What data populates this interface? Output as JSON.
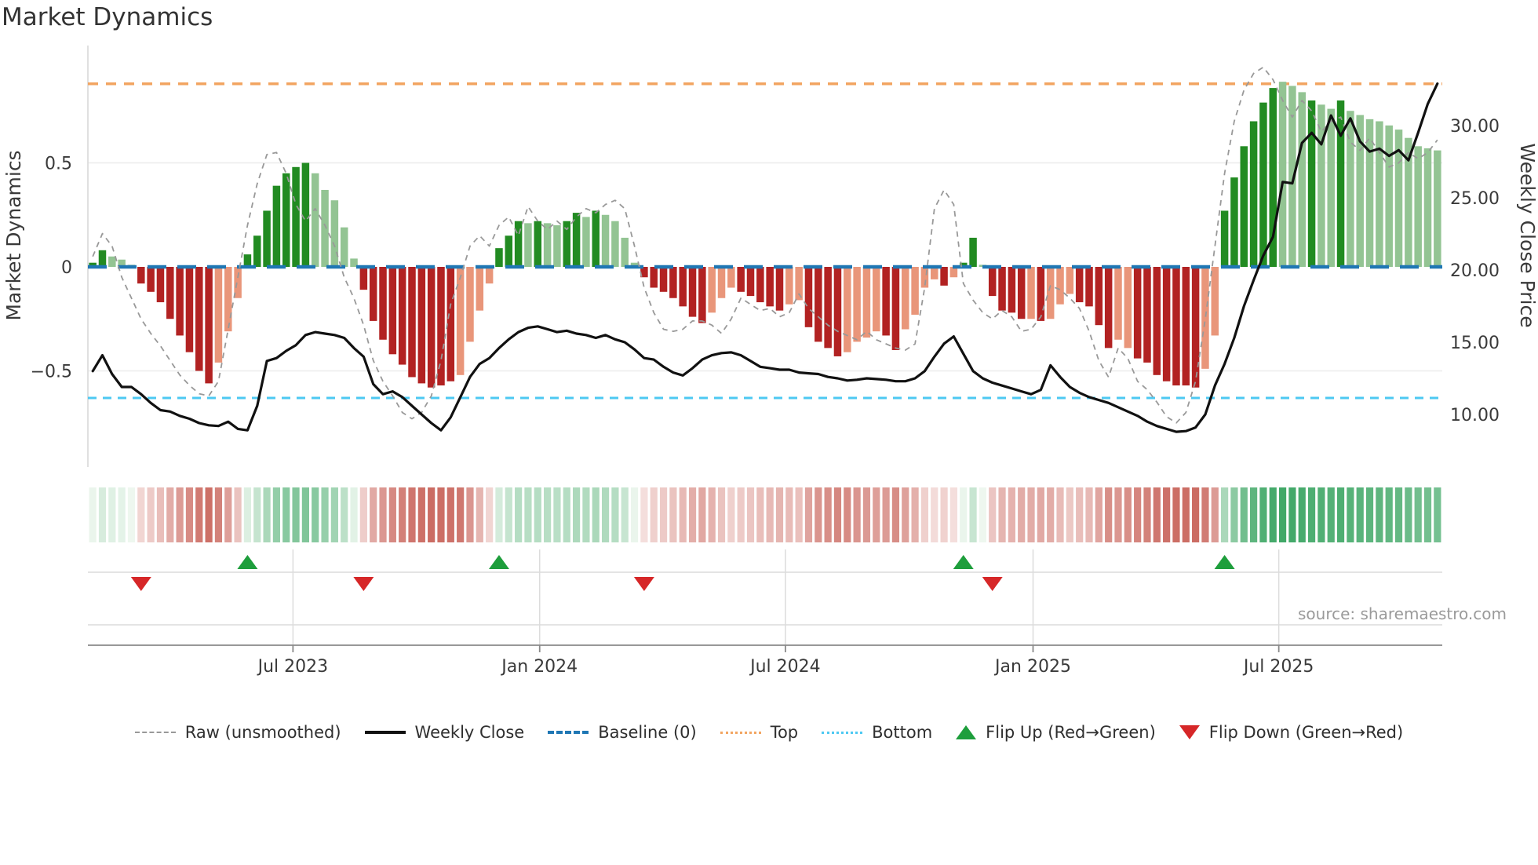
{
  "title": "Market Dynamics",
  "source": "source: sharemaestro.com",
  "axes": {
    "left_label": "Market Dynamics",
    "right_label": "Weekly Close Price",
    "left_ticks": [
      {
        "label": "0.5",
        "value": 0.5
      },
      {
        "label": "0",
        "value": 0.0
      },
      {
        "label": "−0.5",
        "value": -0.5
      }
    ],
    "right_ticks": [
      {
        "label": "30.00",
        "value": 30
      },
      {
        "label": "25.00",
        "value": 25
      },
      {
        "label": "20.00",
        "value": 20
      },
      {
        "label": "15.00",
        "value": 15
      },
      {
        "label": "10.00",
        "value": 10
      }
    ],
    "x_ticks": [
      {
        "label": "Jul 2023",
        "week": 20.7
      },
      {
        "label": "Jan 2024",
        "week": 46.2
      },
      {
        "label": "Jul 2024",
        "week": 71.6
      },
      {
        "label": "Jan 2025",
        "week": 97.2
      },
      {
        "label": "Jul 2025",
        "week": 122.6
      }
    ]
  },
  "legend": {
    "items": [
      {
        "label": "Raw (unsmoothed)",
        "swatch": "raw"
      },
      {
        "label": "Weekly Close",
        "swatch": "weekly"
      },
      {
        "label": "Baseline (0)",
        "swatch": "baseline"
      },
      {
        "label": "Top",
        "swatch": "top"
      },
      {
        "label": "Bottom",
        "swatch": "bottom"
      },
      {
        "label": "Flip Up (Red→Green)",
        "swatch": "tri up"
      },
      {
        "label": "Flip Down (Green→Red)",
        "swatch": "tri down"
      }
    ]
  },
  "chart_data": {
    "type": "bar+line",
    "frequency": "weekly",
    "start_date": "2023-02-06",
    "n_points": 140,
    "baseline": 0,
    "top_line": 0.88,
    "bottom_line": -0.63,
    "left_axis_range": [
      -0.9,
      1.06
    ],
    "right_axis_range": [
      6.5,
      35.5
    ],
    "oscillator_values": [
      0.02,
      0.08,
      0.05,
      0.035,
      0.01,
      -0.08,
      -0.12,
      -0.17,
      -0.25,
      -0.33,
      -0.41,
      -0.5,
      -0.56,
      -0.46,
      -0.31,
      -0.15,
      0.06,
      0.15,
      0.27,
      0.39,
      0.45,
      0.48,
      0.5,
      0.45,
      0.37,
      0.32,
      0.19,
      0.04,
      -0.11,
      -0.26,
      -0.35,
      -0.42,
      -0.47,
      -0.53,
      -0.56,
      -0.58,
      -0.57,
      -0.55,
      -0.52,
      -0.36,
      -0.21,
      -0.08,
      0.09,
      0.15,
      0.22,
      0.21,
      0.22,
      0.21,
      0.2,
      0.22,
      0.26,
      0.24,
      0.27,
      0.25,
      0.22,
      0.14,
      0.02,
      -0.05,
      -0.1,
      -0.12,
      -0.15,
      -0.19,
      -0.24,
      -0.27,
      -0.22,
      -0.15,
      -0.1,
      -0.12,
      -0.14,
      -0.17,
      -0.19,
      -0.21,
      -0.18,
      -0.16,
      -0.29,
      -0.36,
      -0.39,
      -0.43,
      -0.41,
      -0.36,
      -0.34,
      -0.31,
      -0.33,
      -0.4,
      -0.3,
      -0.23,
      -0.1,
      -0.06,
      -0.09,
      -0.05,
      0.02,
      0.14,
      0.01,
      -0.14,
      -0.21,
      -0.22,
      -0.25,
      -0.25,
      -0.26,
      -0.25,
      -0.18,
      -0.13,
      -0.17,
      -0.19,
      -0.28,
      -0.39,
      -0.35,
      -0.39,
      -0.44,
      -0.46,
      -0.52,
      -0.55,
      -0.57,
      -0.57,
      -0.58,
      -0.49,
      -0.33,
      0.27,
      0.43,
      0.58,
      0.7,
      0.79,
      0.86,
      0.89,
      0.87,
      0.84,
      0.8,
      0.78,
      0.76,
      0.8,
      0.75,
      0.73,
      0.71,
      0.7,
      0.68,
      0.66,
      0.62,
      0.58,
      0.57,
      0.56
    ],
    "oscillator_shade": [
      "D",
      "D",
      "L",
      "L",
      "L",
      "D",
      "D",
      "D",
      "D",
      "D",
      "D",
      "D",
      "D",
      "L",
      "L",
      "L",
      "D",
      "D",
      "D",
      "D",
      "D",
      "D",
      "D",
      "L",
      "L",
      "L",
      "L",
      "L",
      "D",
      "D",
      "D",
      "D",
      "D",
      "D",
      "D",
      "D",
      "D",
      "D",
      "L",
      "L",
      "L",
      "L",
      "D",
      "D",
      "D",
      "L",
      "D",
      "L",
      "L",
      "D",
      "D",
      "L",
      "D",
      "L",
      "L",
      "L",
      "L",
      "D",
      "D",
      "D",
      "D",
      "D",
      "D",
      "D",
      "L",
      "L",
      "L",
      "D",
      "D",
      "D",
      "D",
      "D",
      "L",
      "L",
      "D",
      "D",
      "D",
      "D",
      "L",
      "L",
      "L",
      "L",
      "D",
      "D",
      "L",
      "L",
      "L",
      "L",
      "D",
      "L",
      "D",
      "D",
      "L",
      "D",
      "D",
      "D",
      "D",
      "L",
      "D",
      "L",
      "L",
      "L",
      "D",
      "D",
      "D",
      "D",
      "L",
      "L",
      "D",
      "D",
      "D",
      "D",
      "D",
      "D",
      "D",
      "L",
      "L",
      "D",
      "D",
      "D",
      "D",
      "D",
      "D",
      "L",
      "L",
      "L",
      "D",
      "L",
      "L",
      "D",
      "L",
      "L",
      "L",
      "L",
      "L",
      "L",
      "L",
      "L",
      "L",
      "L"
    ],
    "raw_values": [
      0.05,
      0.16,
      0.1,
      -0.05,
      -0.15,
      -0.25,
      -0.32,
      -0.38,
      -0.45,
      -0.52,
      -0.57,
      -0.61,
      -0.62,
      -0.55,
      -0.3,
      -0.05,
      0.2,
      0.4,
      0.54,
      0.55,
      0.45,
      0.3,
      0.22,
      0.28,
      0.2,
      0.1,
      -0.05,
      -0.15,
      -0.28,
      -0.45,
      -0.55,
      -0.62,
      -0.7,
      -0.73,
      -0.7,
      -0.62,
      -0.45,
      -0.18,
      -0.05,
      0.1,
      0.15,
      0.1,
      0.2,
      0.24,
      0.15,
      0.29,
      0.22,
      0.18,
      0.22,
      0.18,
      0.24,
      0.28,
      0.26,
      0.3,
      0.32,
      0.28,
      0.1,
      -0.1,
      -0.22,
      -0.3,
      -0.31,
      -0.3,
      -0.26,
      -0.26,
      -0.28,
      -0.32,
      -0.25,
      -0.15,
      -0.18,
      -0.21,
      -0.2,
      -0.24,
      -0.22,
      -0.13,
      -0.2,
      -0.24,
      -0.28,
      -0.31,
      -0.33,
      -0.35,
      -0.31,
      -0.35,
      -0.37,
      -0.39,
      -0.4,
      -0.37,
      -0.1,
      0.28,
      0.37,
      0.3,
      -0.08,
      -0.16,
      -0.22,
      -0.25,
      -0.21,
      -0.24,
      -0.31,
      -0.3,
      -0.24,
      -0.09,
      -0.11,
      -0.15,
      -0.2,
      -0.31,
      -0.45,
      -0.53,
      -0.39,
      -0.44,
      -0.55,
      -0.59,
      -0.65,
      -0.72,
      -0.75,
      -0.7,
      -0.55,
      -0.25,
      0.1,
      0.45,
      0.7,
      0.85,
      0.93,
      0.96,
      0.9,
      0.8,
      0.72,
      0.8,
      0.75,
      0.65,
      0.7,
      0.72,
      0.6,
      0.56,
      0.62,
      0.55,
      0.48,
      0.5,
      0.55,
      0.52,
      0.55,
      0.61
    ],
    "price_values": [
      13.0,
      14.1,
      12.8,
      11.9,
      11.9,
      11.4,
      10.8,
      10.3,
      10.2,
      9.9,
      9.7,
      9.4,
      9.25,
      9.2,
      9.5,
      9.0,
      8.9,
      10.6,
      13.7,
      13.9,
      14.4,
      14.8,
      15.5,
      15.7,
      15.6,
      15.5,
      15.3,
      14.6,
      14.0,
      12.1,
      11.4,
      11.6,
      11.2,
      10.6,
      10.0,
      9.4,
      8.9,
      9.8,
      11.2,
      12.6,
      13.5,
      13.9,
      14.6,
      15.2,
      15.7,
      16.0,
      16.1,
      15.9,
      15.7,
      15.8,
      15.6,
      15.5,
      15.3,
      15.5,
      15.2,
      15.0,
      14.5,
      13.9,
      13.8,
      13.3,
      12.9,
      12.7,
      13.2,
      13.8,
      14.1,
      14.25,
      14.3,
      14.1,
      13.7,
      13.3,
      13.2,
      13.1,
      13.1,
      12.9,
      12.85,
      12.8,
      12.6,
      12.5,
      12.35,
      12.4,
      12.5,
      12.45,
      12.4,
      12.3,
      12.3,
      12.5,
      13.0,
      14.0,
      14.9,
      15.4,
      14.2,
      13.0,
      12.5,
      12.2,
      12.0,
      11.8,
      11.6,
      11.4,
      11.7,
      13.4,
      12.6,
      11.9,
      11.5,
      11.2,
      11.0,
      10.8,
      10.5,
      10.2,
      9.9,
      9.5,
      9.2,
      9.0,
      8.8,
      8.85,
      9.1,
      10.0,
      12.0,
      13.5,
      15.3,
      17.5,
      19.3,
      21.0,
      22.3,
      26.1,
      26.0,
      28.8,
      29.5,
      28.7,
      30.7,
      29.3,
      30.5,
      28.9,
      28.2,
      28.4,
      27.9,
      28.3,
      27.6,
      29.5,
      31.5,
      32.9
    ],
    "flips": [
      {
        "week": 5,
        "type": "down"
      },
      {
        "week": 16,
        "type": "up"
      },
      {
        "week": 28,
        "type": "down"
      },
      {
        "week": 42,
        "type": "up"
      },
      {
        "week": 57,
        "type": "down"
      },
      {
        "week": 90,
        "type": "up"
      },
      {
        "week": 93,
        "type": "down"
      },
      {
        "week": 117,
        "type": "up"
      }
    ]
  },
  "colors": {
    "bar_pos_dark": "#228B22",
    "bar_pos_light": "#93C493",
    "bar_neg_dark": "#B22222",
    "bar_neg_light": "#E9967A",
    "baseline": "#1f77b4",
    "top_line": "#F2A561",
    "bottom_line": "#4DC9F2",
    "raw_line": "#999999",
    "price_line": "#111111",
    "flip_up": "#1E9E3C",
    "flip_down": "#D62728",
    "heat_green": "#3FA766",
    "heat_red": "#C9655C",
    "grid": "#ECECEC",
    "axis_line": "#8A8A8A",
    "spine": "#D9D9D9",
    "text": "#3A3A3A",
    "muted_text": "#9A9A9A"
  }
}
